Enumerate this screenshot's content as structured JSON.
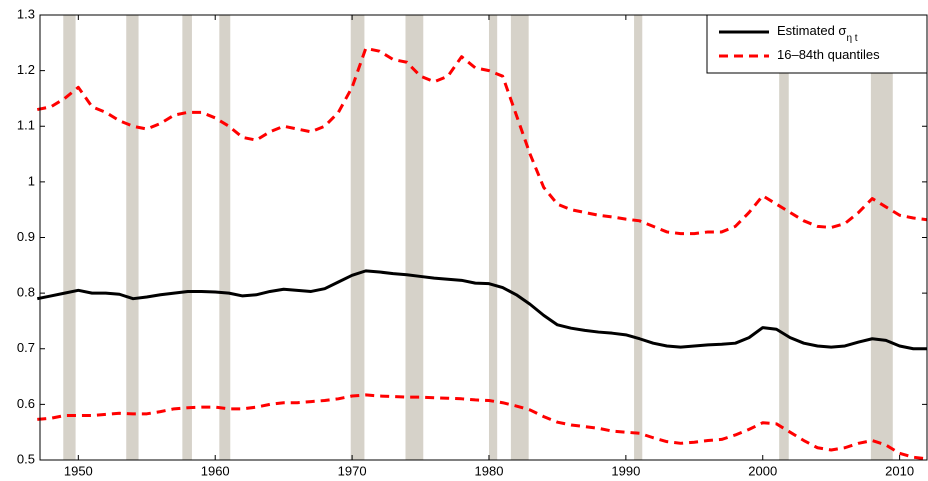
{
  "chart_data": {
    "type": "line",
    "x": [
      1947,
      1948,
      1949,
      1950,
      1951,
      1952,
      1953,
      1954,
      1955,
      1956,
      1957,
      1958,
      1959,
      1960,
      1961,
      1962,
      1963,
      1964,
      1965,
      1966,
      1967,
      1968,
      1969,
      1970,
      1971,
      1972,
      1973,
      1974,
      1975,
      1976,
      1977,
      1978,
      1979,
      1980,
      1981,
      1982,
      1983,
      1984,
      1985,
      1986,
      1987,
      1988,
      1989,
      1990,
      1991,
      1992,
      1993,
      1994,
      1995,
      1996,
      1997,
      1998,
      1999,
      2000,
      2001,
      2002,
      2003,
      2004,
      2005,
      2006,
      2007,
      2008,
      2009,
      2010,
      2011,
      2012
    ],
    "series": [
      {
        "name": "Estimated σ",
        "subscript": "η t",
        "color": "#000000",
        "dashed": false,
        "values": [
          0.79,
          0.795,
          0.8,
          0.805,
          0.8,
          0.8,
          0.798,
          0.79,
          0.793,
          0.797,
          0.8,
          0.803,
          0.803,
          0.802,
          0.8,
          0.795,
          0.797,
          0.803,
          0.807,
          0.805,
          0.803,
          0.808,
          0.82,
          0.832,
          0.84,
          0.838,
          0.835,
          0.833,
          0.83,
          0.827,
          0.825,
          0.823,
          0.818,
          0.817,
          0.81,
          0.797,
          0.78,
          0.76,
          0.743,
          0.737,
          0.733,
          0.73,
          0.728,
          0.725,
          0.718,
          0.71,
          0.705,
          0.703,
          0.705,
          0.707,
          0.708,
          0.71,
          0.72,
          0.738,
          0.735,
          0.72,
          0.71,
          0.705,
          0.703,
          0.705,
          0.712,
          0.718,
          0.715,
          0.705,
          0.7,
          0.7
        ]
      },
      {
        "name": "16–84th quantiles",
        "color": "#ff0000",
        "dashed": true,
        "values": [
          1.13,
          1.135,
          1.15,
          1.17,
          1.135,
          1.125,
          1.11,
          1.1,
          1.095,
          1.105,
          1.12,
          1.125,
          1.125,
          1.115,
          1.1,
          1.08,
          1.075,
          1.09,
          1.1,
          1.095,
          1.09,
          1.1,
          1.125,
          1.17,
          1.24,
          1.235,
          1.22,
          1.215,
          1.19,
          1.18,
          1.19,
          1.225,
          1.205,
          1.2,
          1.19,
          1.12,
          1.05,
          0.99,
          0.96,
          0.95,
          0.945,
          0.94,
          0.937,
          0.933,
          0.93,
          0.92,
          0.91,
          0.907,
          0.907,
          0.91,
          0.91,
          0.92,
          0.945,
          0.975,
          0.96,
          0.945,
          0.93,
          0.92,
          0.918,
          0.925,
          0.945,
          0.97,
          0.955,
          0.94,
          0.935,
          0.932
        ]
      },
      {
        "color": "#ff0000",
        "dashed": true,
        "values": [
          0.573,
          0.575,
          0.58,
          0.58,
          0.58,
          0.582,
          0.584,
          0.583,
          0.583,
          0.587,
          0.592,
          0.594,
          0.595,
          0.595,
          0.592,
          0.592,
          0.595,
          0.6,
          0.603,
          0.603,
          0.605,
          0.607,
          0.61,
          0.615,
          0.617,
          0.615,
          0.614,
          0.613,
          0.613,
          0.612,
          0.611,
          0.61,
          0.608,
          0.607,
          0.603,
          0.597,
          0.59,
          0.578,
          0.568,
          0.563,
          0.56,
          0.557,
          0.552,
          0.55,
          0.548,
          0.54,
          0.533,
          0.53,
          0.532,
          0.535,
          0.537,
          0.545,
          0.555,
          0.567,
          0.565,
          0.55,
          0.535,
          0.522,
          0.518,
          0.522,
          0.53,
          0.535,
          0.527,
          0.512,
          0.505,
          0.502
        ]
      }
    ],
    "shaded_periods": [
      [
        1948.9,
        1949.8
      ],
      [
        1953.5,
        1954.4
      ],
      [
        1957.6,
        1958.3
      ],
      [
        1960.3,
        1961.1
      ],
      [
        1969.9,
        1970.9
      ],
      [
        1973.9,
        1975.2
      ],
      [
        1980.0,
        1980.6
      ],
      [
        1981.6,
        1982.9
      ],
      [
        1990.6,
        1991.2
      ],
      [
        2001.2,
        2001.9
      ],
      [
        2007.9,
        2009.5
      ]
    ],
    "shade_color": "#d6d2c9",
    "xlim": [
      1947.2,
      2012
    ],
    "xticks": [
      1950,
      1960,
      1970,
      1980,
      1990,
      2000,
      2010
    ],
    "ylim": [
      0.5,
      1.3
    ],
    "yticks": [
      0.5,
      0.6,
      0.7,
      0.8,
      0.9,
      1,
      1.1,
      1.2,
      1.3
    ],
    "grid": false,
    "legend": "upper right"
  }
}
